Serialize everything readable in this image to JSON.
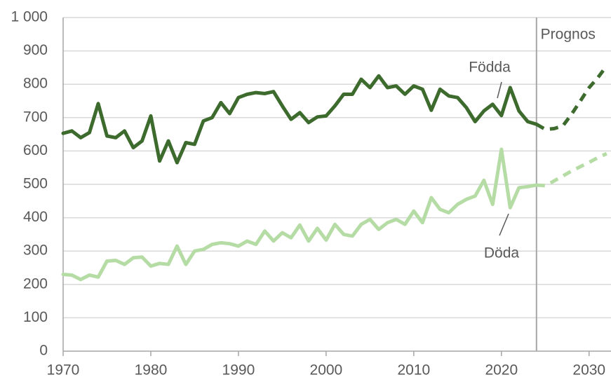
{
  "chart_data": {
    "type": "line",
    "annotations": [
      "Prognos"
    ],
    "forecast_start": 2024,
    "x": [
      1970,
      1971,
      1972,
      1973,
      1974,
      1975,
      1976,
      1977,
      1978,
      1979,
      1980,
      1981,
      1982,
      1983,
      1984,
      1985,
      1986,
      1987,
      1988,
      1989,
      1990,
      1991,
      1992,
      1993,
      1994,
      1995,
      1996,
      1997,
      1998,
      1999,
      2000,
      2001,
      2002,
      2003,
      2004,
      2005,
      2006,
      2007,
      2008,
      2009,
      2010,
      2011,
      2012,
      2013,
      2014,
      2015,
      2016,
      2017,
      2018,
      2019,
      2020,
      2021,
      2022,
      2023,
      2024,
      2025,
      2026,
      2027,
      2028,
      2029,
      2030,
      2031,
      2032
    ],
    "series": [
      {
        "name": "Födda",
        "color": "#3d6b2d",
        "values": [
          653,
          660,
          640,
          655,
          742,
          645,
          640,
          660,
          610,
          630,
          705,
          570,
          630,
          565,
          625,
          620,
          690,
          700,
          745,
          712,
          760,
          770,
          775,
          772,
          778,
          735,
          695,
          715,
          685,
          702,
          705,
          735,
          770,
          770,
          815,
          790,
          825,
          790,
          795,
          770,
          795,
          785,
          722,
          785,
          765,
          760,
          730,
          688,
          720,
          740,
          706,
          790,
          720,
          688,
          680,
          665,
          667,
          675,
          710,
          750,
          790,
          820,
          855
        ]
      },
      {
        "name": "Döda",
        "color": "#b5dca4",
        "values": [
          230,
          228,
          215,
          228,
          222,
          270,
          272,
          260,
          280,
          282,
          255,
          263,
          260,
          315,
          260,
          300,
          305,
          320,
          325,
          322,
          315,
          330,
          320,
          360,
          330,
          355,
          340,
          378,
          330,
          368,
          333,
          380,
          350,
          345,
          380,
          395,
          365,
          385,
          395,
          380,
          420,
          385,
          460,
          425,
          415,
          440,
          455,
          465,
          512,
          440,
          605,
          430,
          490,
          493,
          498,
          496,
          510,
          525,
          540,
          553,
          566,
          580,
          592
        ]
      }
    ],
    "xlim": [
      1970,
      2032.5
    ],
    "xticks": [
      1970,
      1980,
      1990,
      2000,
      2010,
      2020,
      2030
    ],
    "ylim": [
      0,
      1000
    ],
    "yticks": [
      0,
      100,
      200,
      300,
      400,
      500,
      600,
      700,
      800,
      900,
      {
        "value": 1000,
        "label": "1 000"
      }
    ],
    "grid": true
  }
}
